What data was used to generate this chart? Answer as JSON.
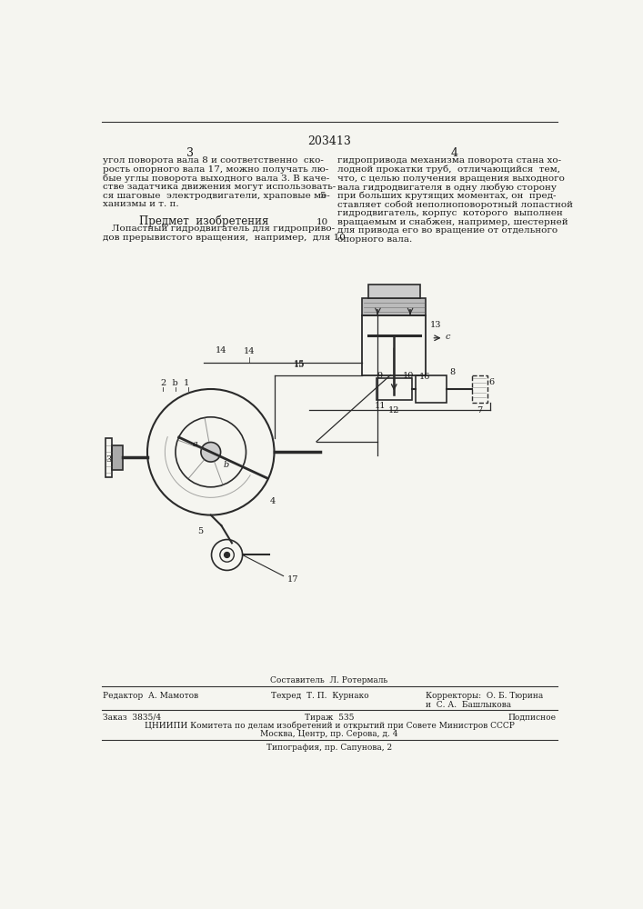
{
  "page_number": "203413",
  "col_left": "3",
  "col_right": "4",
  "text_left_1": "угол поворота вала 8 и соответственно  ско-",
  "text_left_2": "рость опорного вала 17, можно получать лю-",
  "text_left_3": "бые углы поворота выходного вала 3. В каче-",
  "text_left_4": "стве задатчика движения могут использовать-",
  "text_left_5": "ся шаговые  электродвигатели, храповые ме-",
  "text_left_6": "ханизмы и т. п.",
  "heading": "Предмет  изобретения",
  "text_left_7": "   Лопастный гидродвигатель для гидроприво-",
  "text_left_8": "дов прерывистого вращения,  например,  для 10",
  "text_right_1": "гидропривода механизма поворота стана хо-",
  "text_right_2": "лодной прокатки труб,  отличающийся  тем,",
  "text_right_3": "что, с целью получения вращения выходного",
  "text_right_4": "вала гидродвигателя в одну любую сторону",
  "text_right_5": "при больших крутящих моментах, он  пред-",
  "text_right_6": "ставляет собой неполноповоротный лопастной",
  "text_right_7": "гидродвигатель, корпус  которого  выполнен",
  "text_right_8": "вращаемым и снабжен, например, шестерней",
  "text_right_9": "для привода его во вращение от отдельного",
  "text_right_10": "опорного вала.",
  "compiler_label": "Составитель  Л. Ротермаль",
  "editor_label": "Редактор  А. Мамотов",
  "techred_label": "Техред  Т. П.  Курнако",
  "correctors_label": "Корректоры:  О. Б. Тюрина",
  "correctors_label2": "и  С. А.  Башлыкова",
  "order_label": "Заказ  3835/4",
  "tirazh_label": "Тираж  535",
  "podpisnoe_label": "Подписное",
  "cniini_label": "ЦНИИПИ Комитета по делам изобретений и открытий при Совете Министров СССР",
  "moscow_label": "Москва, Центр, пр. Серова, д. 4",
  "typogr_label": "Типография, пр. Сапунова, 2",
  "bg_color": "#f5f5f0",
  "text_color": "#1a1a1a",
  "line_color": "#333333"
}
